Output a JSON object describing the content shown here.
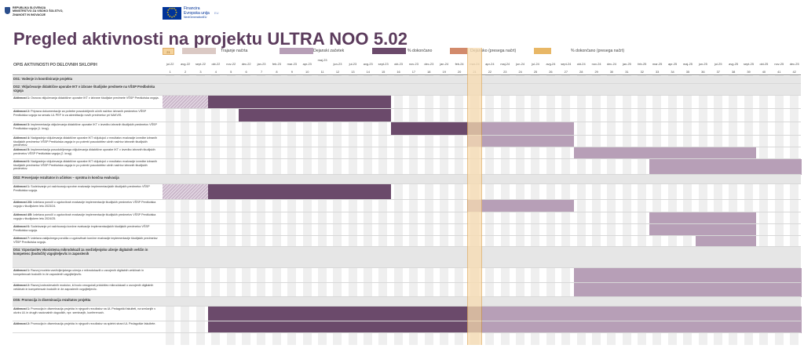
{
  "header": {
    "ministry": "REPUBLIKA SLOVENIJA\nMINISTRSTVO ZA VISOKO ŠOLSTVO,\nZNANOST IN INOVACIJE",
    "eu_funding": "Financira\nEvropska unija",
    "eu_sub": "NextGenerationEU",
    "ngeu_mark": "EU"
  },
  "title": "Pregled aktivnosti na projektu ULTRA NOO 5.02",
  "legend": {
    "current_month_box": "21",
    "items": [
      {
        "label": "Trajanje načrta",
        "color": "#dbc9c4"
      },
      {
        "label": "Dejanski začetek",
        "color": "#b79fb7"
      },
      {
        "label": "% dokončano",
        "color": "#6b4a6b"
      },
      {
        "label": "Dejansko (presega načrt)",
        "color": "#d28a6b"
      },
      {
        "label": "% dokončano (presega načrt)",
        "color": "#e8b766"
      }
    ]
  },
  "timeline": {
    "column_header": "OPIS AKTIVNOSTI PO DELOVNIH SKLOPIH",
    "months": [
      "jul-22",
      "avg-22",
      "sept-22",
      "okt-22",
      "nov-22",
      "dec-22",
      "jan-23",
      "feb-23",
      "mar-23",
      "apr-23",
      "maj-23",
      "jun-23",
      "jul-23",
      "avg-23",
      "sept-23",
      "okt-23",
      "nov-23",
      "dec-23",
      "jan-24",
      "feb-24",
      "mar-24",
      "apr-24",
      "maj-24",
      "jun-24",
      "jul-24",
      "avg-24",
      "sept-24",
      "okt-24",
      "nov-24",
      "dec-24",
      "jan-25",
      "feb-25",
      "mar-25",
      "apr-25",
      "maj-25",
      "jun-25",
      "jul-25",
      "avg-25",
      "sept-25",
      "okt-25",
      "nov-25",
      "dec-25"
    ],
    "numbers": [
      "1",
      "2",
      "3",
      "4",
      "5",
      "6",
      "7",
      "8",
      "9",
      "10",
      "11",
      "12",
      "13",
      "14",
      "15",
      "16",
      "17",
      "18",
      "19",
      "20",
      "21",
      "22",
      "23",
      "24",
      "25",
      "26",
      "27",
      "28",
      "29",
      "30",
      "31",
      "32",
      "33",
      "34",
      "35",
      "36",
      "37",
      "38",
      "39",
      "40",
      "41",
      "42"
    ],
    "current_month": 21
  },
  "rows": [
    {
      "type": "section",
      "title": "DS1: Vodenje in koordiniranje projekta",
      "bars": []
    },
    {
      "type": "section",
      "title": "DS2: Vključevanje didaktične uporabe IKT v izbrane študijske predmete na VŠSP Predbolska vzgoja",
      "bars": []
    },
    {
      "type": "activity",
      "name": "Aktivnost 1:",
      "text": "Osnova vključevanja didaktične uporabe IKT v izbrane študijske predmete VŠSP Predšolska vzgoja.",
      "bars": [
        {
          "s": 1,
          "e": 3,
          "k": "hatch"
        },
        {
          "s": 4,
          "e": 15,
          "k": "dk"
        }
      ]
    },
    {
      "type": "activity",
      "name": "Aktivnost 2:",
      "text": "Priprava dokumentacije za potrebe posodobljenih učnih načrtov izbranih predmetov VŠSP Predšolska vzgoja na senatu UL PEF in za akreditacijo novih predmetov pri NAKVIS.",
      "bars": [
        {
          "s": 6,
          "e": 15,
          "k": "dk"
        }
      ]
    },
    {
      "type": "activity",
      "name": "Aktivnost 3:",
      "text": "Implementacija vključevanja didaktične uporabe IKT v izvedbo izbranih študijskih predmetov VŠSP Predšolska vzgoja (1. krog).",
      "bars": [
        {
          "s": 16,
          "e": 21,
          "k": "dk"
        },
        {
          "s": 22,
          "e": 27,
          "k": "lt"
        }
      ]
    },
    {
      "type": "activity",
      "name": "Aktivnost 4:",
      "text": "Nadgradnja vključevanja didaktične uporabe IKT vključujoč z rezultatov evalvacije izvedbe izbranih študijskih predmetov VŠSP Predšolska vzgoja in po potrebi posodobitev učnih načrtov izbranih študijskih predmetov.",
      "bars": [
        {
          "s": 21,
          "e": 27,
          "k": "lt"
        }
      ]
    },
    {
      "type": "activity",
      "name": "Aktivnost 5:",
      "text": "Implementacija posodobljenega vključevanja didaktične uporabe IKT v izvedbo izbranih študijskih predmetov VŠSP Predšolska vzgoja (2. krog).",
      "bars": [
        {
          "s": 28,
          "e": 39,
          "k": "lt"
        }
      ]
    },
    {
      "type": "activity",
      "name": "Aktivnost 6:",
      "text": "Nadgradnja vključevanja didaktične uporabe IKT vključujoč z rezultatov evalvacije izvedbe izbranih študijskih predmetov VŠSP Predšolska vzgoja in po potrebi posodobitev učnih načrtov izbranih študijskih predmetov.",
      "bars": [
        {
          "s": 33,
          "e": 42,
          "k": "lt"
        }
      ]
    },
    {
      "type": "section",
      "title": "DS3: Preverjanje rezultatov in učinkov – sprotna in končna evalvacija",
      "bars": []
    },
    {
      "type": "activity",
      "name": "Aktivnost 1:",
      "text": "Sodelovanje pri načrtovanju sprotne evalvacije implementacijskih študijskih predmetov VŠSP Predšolska vzgoja.",
      "bars": [
        {
          "s": 1,
          "e": 3,
          "k": "hatch"
        },
        {
          "s": 4,
          "e": 15,
          "k": "dk"
        }
      ]
    },
    {
      "type": "activity",
      "name": "Aktivnost 2/3:",
      "text": "Izdelava poročil o ugotovitvah evalvacije implementacije študijskih predmetov VŠSP Predšolska vzgoja v študijskem letu 2023/24.",
      "bars": [
        {
          "s": 21,
          "e": 27,
          "k": "lt"
        }
      ]
    },
    {
      "type": "activity",
      "name": "Aktivnost 4/5:",
      "text": "Izdelava poročil o ugotovitvah evalvacije implementacije študijskih predmetov VŠSP Predšolska vzgoja v študijskem letu 2024/25.",
      "bars": [
        {
          "s": 33,
          "e": 39,
          "k": "lt"
        }
      ]
    },
    {
      "type": "activity",
      "name": "Aktivnost 6:",
      "text": "Sodelovanje pri načrtovanju končne evalvacije implementacijskih študijskih predmetov VŠSP Predšolska vzgoja.",
      "bars": [
        {
          "s": 33,
          "e": 39,
          "k": "lt"
        }
      ]
    },
    {
      "type": "activity",
      "name": "Aktivnost 7:",
      "text": "Izdelava zaključnega poročila o ugotovitvah končne evalvacije implementacije študijskih predmetov VŠSP Predšolska vzgoja.",
      "bars": [
        {
          "s": 36,
          "e": 39,
          "k": "lt"
        }
      ]
    },
    {
      "type": "section",
      "title": "DS4: Vzpostavitev ekosistema mikrodokazil za vseživljenjsko učenje digitalnih veščin in kompetenc (bodočih) vzgojiteljev/ic in zaposlenih",
      "bars": []
    },
    {
      "type": "activity",
      "name": "Aktivnost 1:",
      "text": "Razvoj modela vseživljenjskega učenja z mikrodokazili o usvojenih digitalnih veščinah in kompetencah bodočih in že zaposlenih vzgojiteljev/ic.",
      "bars": [
        {
          "s": 28,
          "e": 42,
          "k": "lt"
        }
      ]
    },
    {
      "type": "activity",
      "name": "Aktivnost 2:",
      "text": "Razvoj izobraževalnih modulov, ki bodo omogočali pridobitev mikrodokazil o usvojenih digitalnih veščinah in kompetencah bodočih in že zaposlenih vzgojiteljev/ic.",
      "bars": [
        {
          "s": 28,
          "e": 42,
          "k": "lt"
        }
      ]
    },
    {
      "type": "section",
      "title": "DS5: Promocija in diseminacija rezultatov projekta",
      "bars": []
    },
    {
      "type": "activity",
      "name": "Aktivnost 1:",
      "text": "Promocija in diseminacija projekta in njegovih rezultatov na UL Pedagoški fakulteti, na srečanjih v okviru UL in drugih nacionalnih dogodkih, npr. seminarjih, konferencah.",
      "bars": [
        {
          "s": 4,
          "e": 21,
          "k": "dk"
        },
        {
          "s": 22,
          "e": 42,
          "k": "lt"
        }
      ]
    },
    {
      "type": "activity",
      "name": "Aktivnost 2:",
      "text": "Promocija in diseminacija projekta in njegovih rezultatov na spletni strani UL Pedagoške fakultete.",
      "bars": [
        {
          "s": 4,
          "e": 21,
          "k": "dk"
        },
        {
          "s": 22,
          "e": 42,
          "k": "lt"
        }
      ]
    }
  ]
}
